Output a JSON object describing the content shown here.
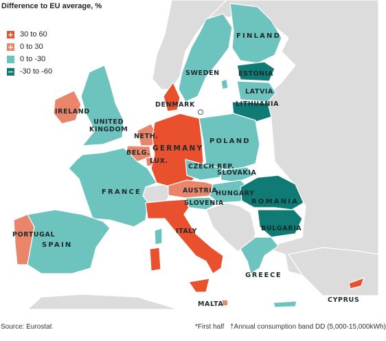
{
  "legend": {
    "title": "Difference to EU average, %",
    "items": [
      {
        "symbol": "+",
        "label": "30 to 60",
        "color": "#e8502e"
      },
      {
        "symbol": "+",
        "label": "0 to 30",
        "color": "#e8856a"
      },
      {
        "symbol": "",
        "label": "0 to -30",
        "color": "#6dc3bd"
      },
      {
        "symbol": "−",
        "label": "-30 to -60",
        "color": "#0f7b74"
      }
    ]
  },
  "colors": {
    "sea": "#ffffff",
    "non_eu": "#dcdcdc",
    "border": "#ffffff"
  },
  "countries": {
    "finland": {
      "label": "FINLAND",
      "category": "0 to -30"
    },
    "sweden": {
      "label": "SWEDEN",
      "category": "0 to -30"
    },
    "estonia": {
      "label": "ESTONIA",
      "category": "-30 to -60"
    },
    "latvia": {
      "label": "LATVIA",
      "category": "0 to -30"
    },
    "lithuania": {
      "label": "LITHUANIA",
      "category": "-30 to -60"
    },
    "denmark": {
      "label": "DENMARK",
      "category": "30 to 60"
    },
    "ireland": {
      "label": "IRELAND",
      "category": "0 to 30"
    },
    "uk": {
      "label_1": "UNITED",
      "label_2": "KINGDOM",
      "category": "0 to -30"
    },
    "netherlands": {
      "label": "NETH.",
      "category": "0 to 30"
    },
    "belgium": {
      "label": "BELG.",
      "category": "0 to 30"
    },
    "luxembourg": {
      "label": "LUX.",
      "category": "0 to 30"
    },
    "germany": {
      "label": "GERMANY",
      "category": "30 to 60"
    },
    "poland": {
      "label": "POLAND",
      "category": "0 to -30"
    },
    "czech": {
      "label": "CZECH REP.",
      "category": "0 to -30"
    },
    "slovakia": {
      "label": "SLOVAKIA",
      "category": "0 to -30"
    },
    "austria": {
      "label": "AUSTRIA",
      "category": "0 to 30"
    },
    "hungary": {
      "label": "HUNGARY",
      "category": "0 to -30"
    },
    "slovenia": {
      "label": "SLOVENIA",
      "category": "0 to -30"
    },
    "france": {
      "label": "FRANCE",
      "category": "0 to -30"
    },
    "romania": {
      "label": "ROMANIA",
      "category": "-30 to -60"
    },
    "bulgaria": {
      "label": "BULGARIA",
      "category": "-30 to -60"
    },
    "italy": {
      "label": "ITALY",
      "category": "30 to 60"
    },
    "portugal": {
      "label": "PORTUGAL",
      "category": "0 to 30"
    },
    "spain": {
      "label": "SPAIN",
      "category": "0 to -30"
    },
    "greece": {
      "label": "GREECE",
      "category": "0 to -30"
    },
    "malta": {
      "label": "MALTA",
      "category": "0 to 30"
    },
    "cyprus": {
      "label": "CYPRUS",
      "category": "30 to 60"
    }
  },
  "footer": {
    "source": "Source: Eurostat",
    "footnote_1": "*First half",
    "footnote_2": "†Annual consumption band DD (5,000-15,000kWh)"
  }
}
